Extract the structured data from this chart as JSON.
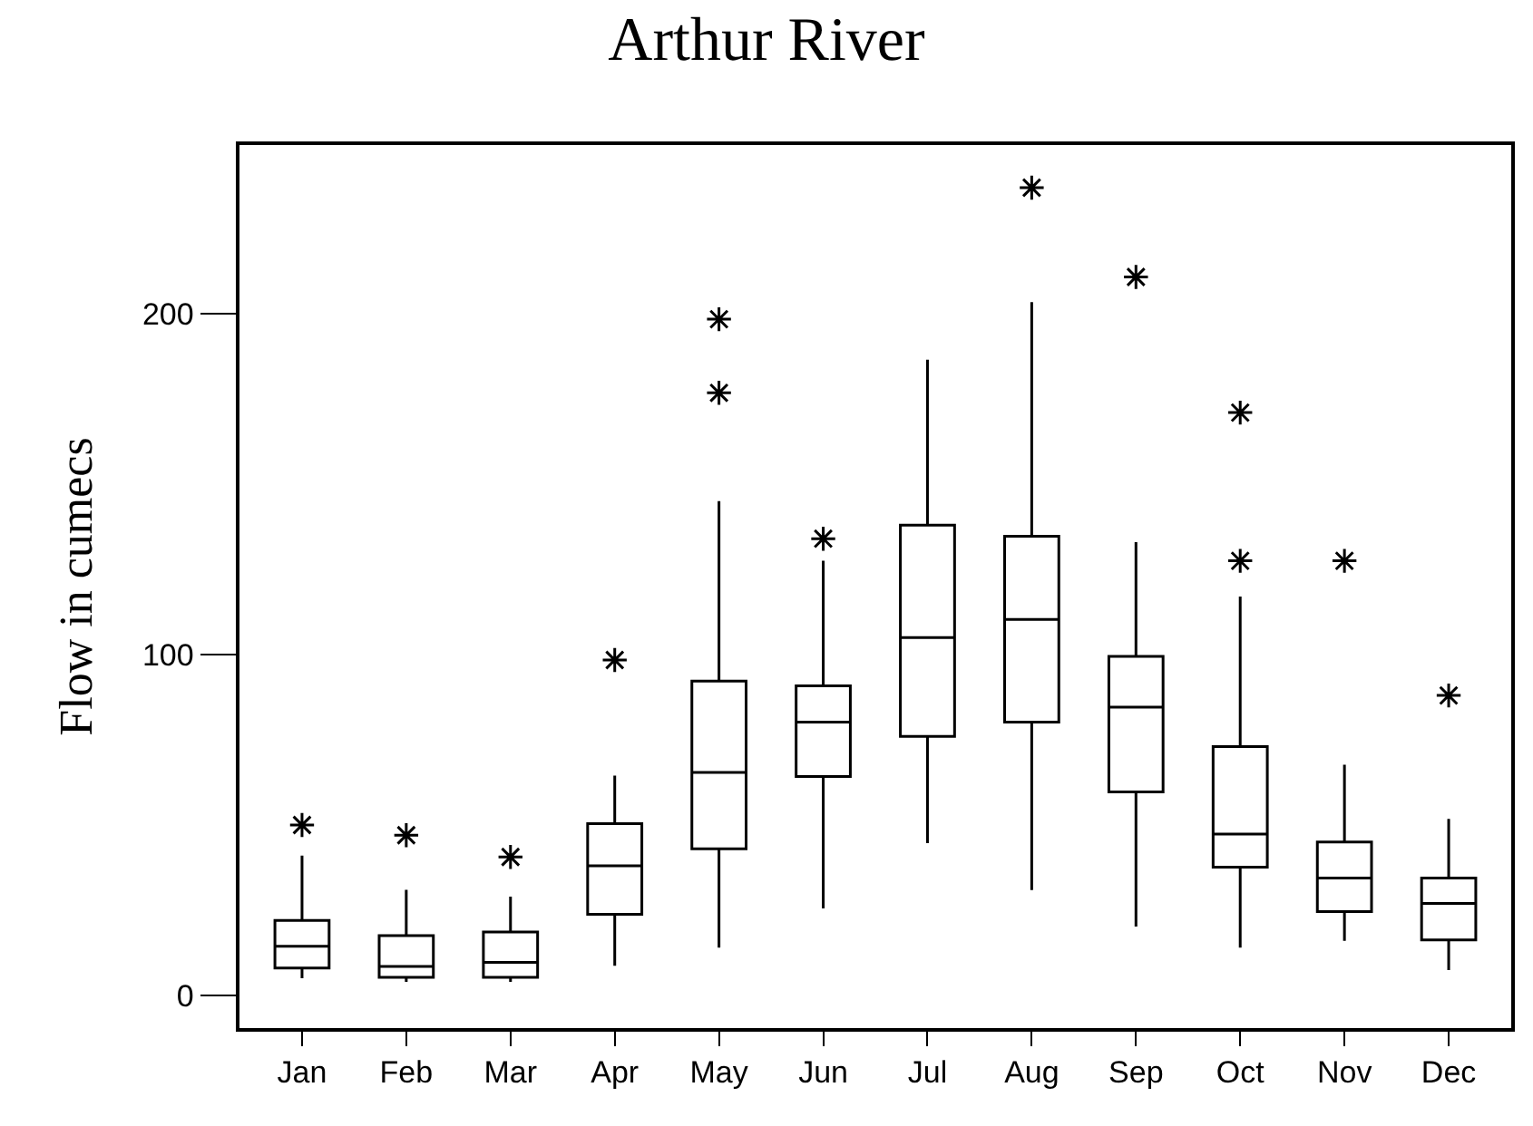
{
  "chart_data": {
    "type": "box",
    "title": "Arthur River",
    "ylabel": "Flow in cumecs",
    "categories": [
      "Jan",
      "Feb",
      "Mar",
      "Apr",
      "May",
      "Jun",
      "Jul",
      "Aug",
      "Sep",
      "Oct",
      "Nov",
      "Dec"
    ],
    "ylim": [
      -9.6,
      249.5
    ],
    "yticks": [
      0,
      100,
      200
    ],
    "marker": "star",
    "color": "#000000",
    "boxes": [
      {
        "low": 5,
        "q1": 8,
        "median": 14.4,
        "q3": 22,
        "high": 41,
        "outliers": [
          50
        ]
      },
      {
        "low": 4,
        "q1": 5.3,
        "median": 8.5,
        "q3": 17.5,
        "high": 31,
        "outliers": [
          47
        ]
      },
      {
        "low": 4,
        "q1": 5.3,
        "median": 9.7,
        "q3": 18.6,
        "high": 29,
        "outliers": [
          40.6
        ]
      },
      {
        "low": 8.7,
        "q1": 23.8,
        "median": 38,
        "q3": 50.4,
        "high": 64.5,
        "outliers": [
          98.4
        ]
      },
      {
        "low": 14,
        "q1": 43,
        "median": 65.4,
        "q3": 92.2,
        "high": 145,
        "outliers": [
          176.8,
          198.4
        ]
      },
      {
        "low": 25.5,
        "q1": 64.2,
        "median": 80.2,
        "q3": 90.8,
        "high": 127.5,
        "outliers": [
          134
        ]
      },
      {
        "low": 44.7,
        "q1": 76,
        "median": 105,
        "q3": 138,
        "high": 186.5
      },
      {
        "low": 30.9,
        "q1": 80.2,
        "median": 110.3,
        "q3": 134.7,
        "high": 203.4,
        "outliers": [
          237
        ]
      },
      {
        "low": 20.2,
        "q1": 59.7,
        "median": 84.6,
        "q3": 99.5,
        "high": 133,
        "outliers": [
          210.8
        ]
      },
      {
        "low": 14,
        "q1": 37.6,
        "median": 47.3,
        "q3": 73,
        "high": 117,
        "outliers": [
          127.5,
          171
        ]
      },
      {
        "low": 16,
        "q1": 24.6,
        "median": 34.4,
        "q3": 45,
        "high": 67.7,
        "outliers": [
          127.5
        ]
      },
      {
        "low": 7.4,
        "q1": 16.3,
        "median": 27,
        "q3": 34.4,
        "high": 51.8,
        "outliers": [
          88
        ]
      }
    ]
  }
}
